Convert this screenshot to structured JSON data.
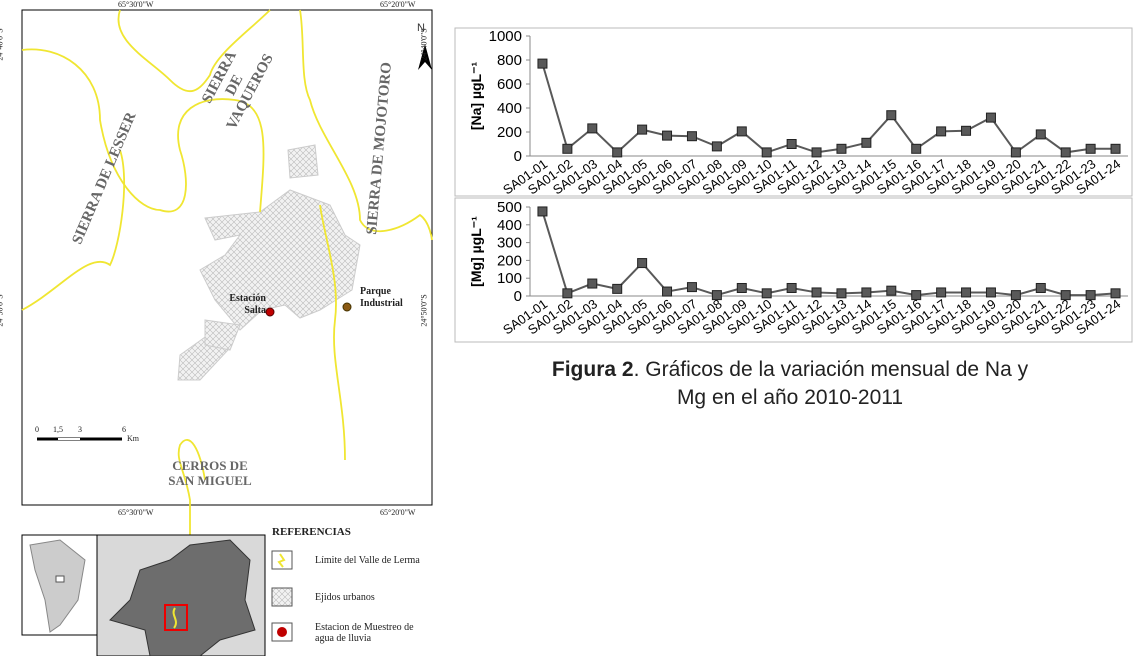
{
  "map": {
    "longitudes": [
      "65°30'0\"W",
      "65°20'0\"W"
    ],
    "latitudes": [
      "24°40'0\"S",
      "24°50'0\"S"
    ],
    "ranges": [
      "SIERRA DE LESSER",
      "SIERRA DE VAQUEROS",
      "SIERRA DE MOJOTORO",
      "CERROS DE SAN MIGUEL"
    ],
    "stations": [
      "Estación Salta",
      "Parque Industrial"
    ],
    "north": "N",
    "scale": {
      "ticks": [
        "0",
        "1,5",
        "3",
        "6"
      ],
      "unit": "Km"
    }
  },
  "legend": {
    "title": "REFERENCIAS",
    "items": [
      "Límite del Valle de Lerma",
      "Ejidos urbanos",
      "Estacion de Muestreo de agua de lluvia"
    ]
  },
  "chart_data": [
    {
      "type": "line",
      "ylabel": "[Na] µgL⁻¹",
      "color": "#595959",
      "categories": [
        "SA01-01",
        "SA01-02",
        "SA01-03",
        "SA01-04",
        "SA01-05",
        "SA01-06",
        "SA01-07",
        "SA01-08",
        "SA01-09",
        "SA01-10",
        "SA01-11",
        "SA01-12",
        "SA01-13",
        "SA01-14",
        "SA01-15",
        "SA01-16",
        "SA01-17",
        "SA01-18",
        "SA01-19",
        "SA01-20",
        "SA01-21",
        "SA01-22",
        "SA01-23",
        "SA01-24"
      ],
      "values": [
        770,
        60,
        230,
        30,
        220,
        170,
        165,
        80,
        205,
        30,
        100,
        30,
        60,
        110,
        340,
        60,
        205,
        210,
        320,
        30,
        180,
        30,
        60,
        60
      ],
      "ylim": [
        0,
        1000
      ],
      "yticks": [
        0,
        200,
        400,
        600,
        800,
        1000
      ],
      "grid": false
    },
    {
      "type": "line",
      "ylabel": "[Mg] µgL⁻¹",
      "color": "#595959",
      "categories": [
        "SA01-01",
        "SA01-02",
        "SA01-03",
        "SA01-04",
        "SA01-05",
        "SA01-06",
        "SA01-07",
        "SA01-08",
        "SA01-09",
        "SA01-10",
        "SA01-11",
        "SA01-12",
        "SA01-13",
        "SA01-14",
        "SA01-15",
        "SA01-16",
        "SA01-17",
        "SA01-18",
        "SA01-19",
        "SA01-20",
        "SA01-21",
        "SA01-22",
        "SA01-23",
        "SA01-24"
      ],
      "values": [
        475,
        15,
        70,
        40,
        185,
        25,
        50,
        5,
        45,
        15,
        45,
        20,
        15,
        20,
        30,
        5,
        20,
        20,
        20,
        5,
        45,
        5,
        5,
        15
      ],
      "ylim": [
        0,
        500
      ],
      "yticks": [
        0,
        100,
        200,
        300,
        400,
        500
      ],
      "grid": false
    }
  ],
  "caption": {
    "label": "Figura 2",
    "text": ". Gráficos de la variación mensual de Na y Mg en el año 2010-2011"
  }
}
